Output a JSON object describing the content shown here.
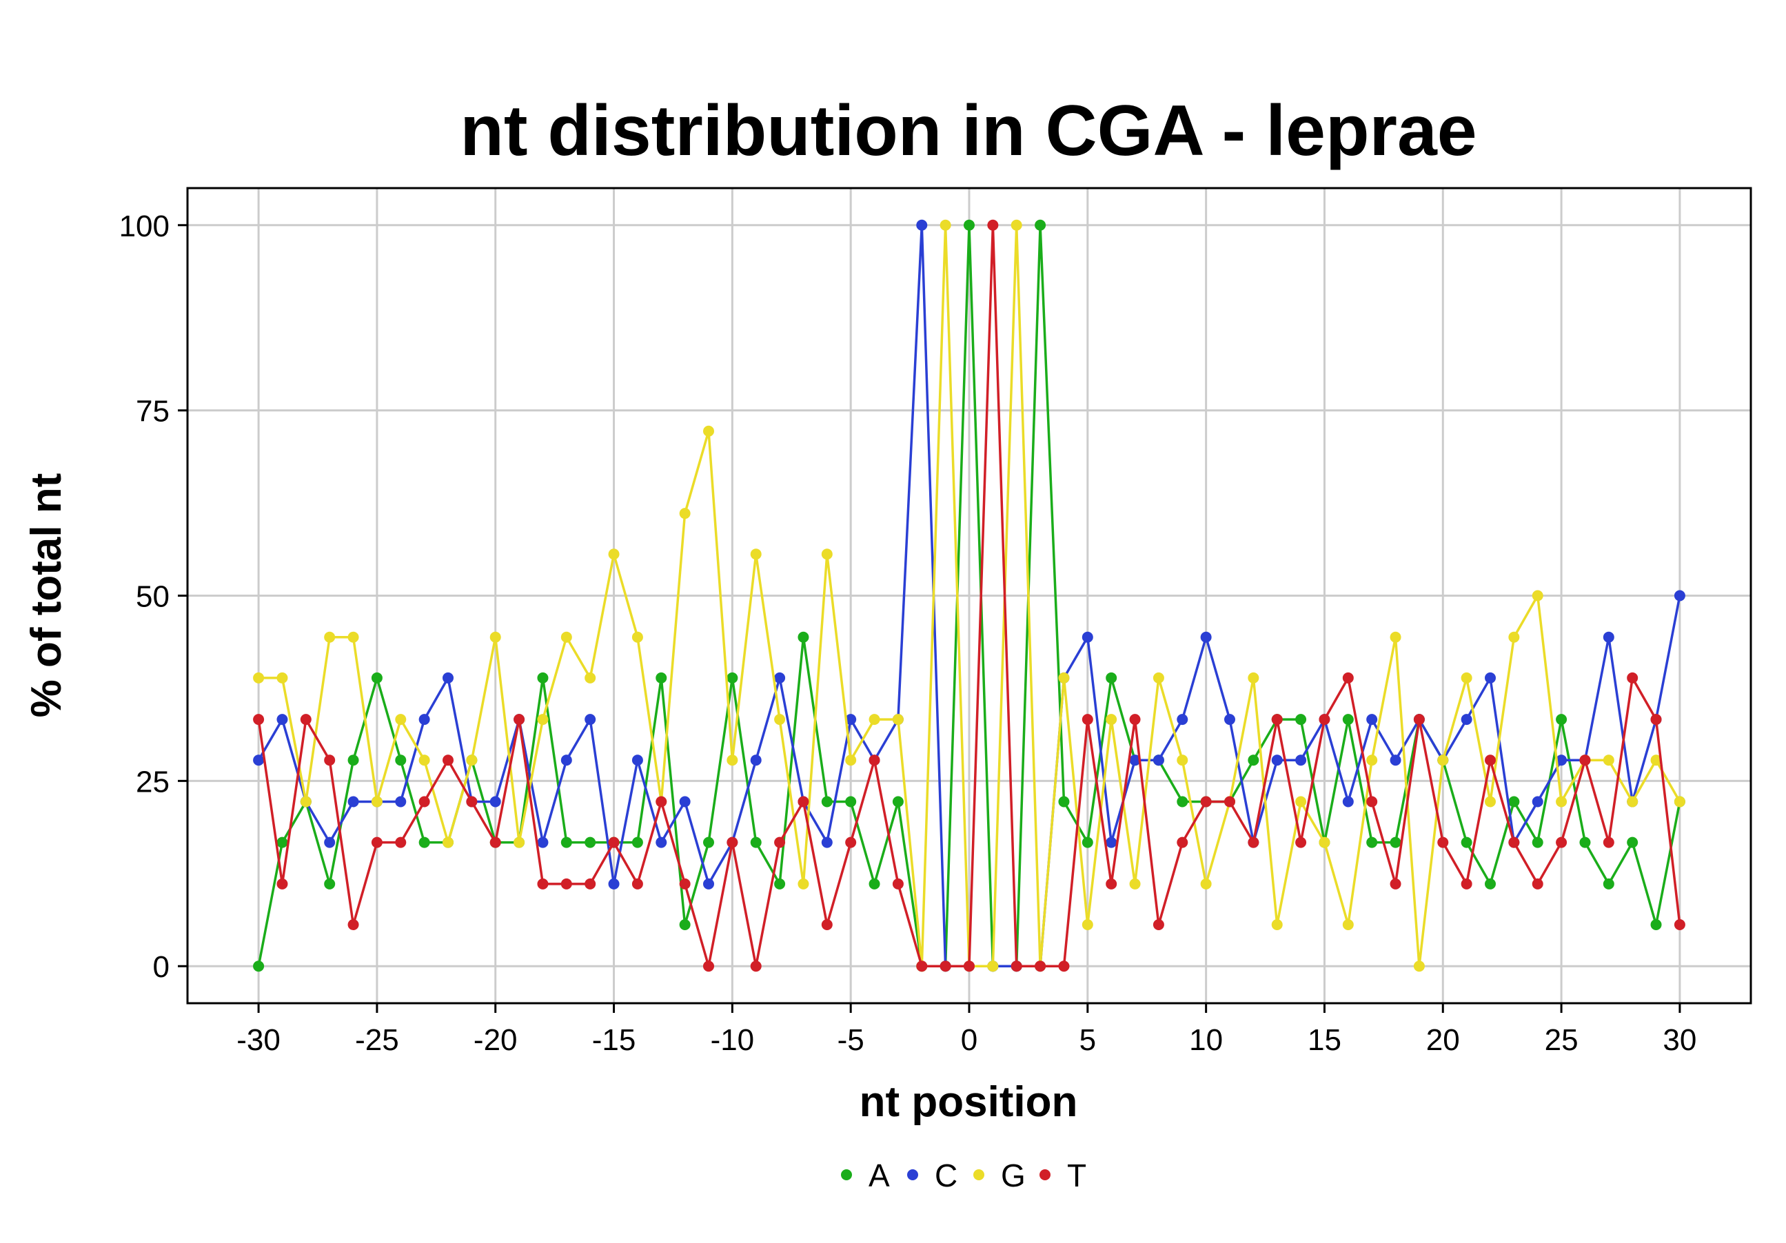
{
  "chart_data": {
    "type": "line",
    "title": "nt distribution in CGA - leprae",
    "xlabel": "nt position",
    "ylabel": "% of total nt",
    "xlim": [
      -33,
      33
    ],
    "ylim": [
      -5,
      105
    ],
    "x_ticks": [
      -30,
      -25,
      -20,
      -15,
      -10,
      -5,
      0,
      5,
      10,
      15,
      20,
      25,
      30
    ],
    "x_tick_labels": [
      "-30",
      "-25",
      "-20",
      "-15",
      "-10",
      "-5",
      "0",
      "5",
      "10",
      "15",
      "20",
      "25",
      "30"
    ],
    "y_ticks": [
      0,
      25,
      50,
      75,
      100
    ],
    "y_tick_labels": [
      "0",
      "25",
      "50",
      "75",
      "100"
    ],
    "grid": true,
    "legend_position": "bottom",
    "x": [
      -30,
      -29,
      -28,
      -27,
      -26,
      -25,
      -24,
      -23,
      -22,
      -21,
      -20,
      -19,
      -18,
      -17,
      -16,
      -15,
      -14,
      -13,
      -12,
      -11,
      -10,
      -9,
      -8,
      -7,
      -6,
      -5,
      -4,
      -3,
      -2,
      -1,
      0,
      1,
      2,
      3,
      4,
      5,
      6,
      7,
      8,
      9,
      10,
      11,
      12,
      13,
      14,
      15,
      16,
      17,
      18,
      19,
      20,
      21,
      22,
      23,
      24,
      25,
      26,
      27,
      28,
      29,
      30
    ],
    "series": [
      {
        "name": "A",
        "color": "#1aad1a",
        "values": [
          0,
          16.7,
          22.2,
          11.1,
          27.8,
          38.9,
          27.8,
          16.7,
          16.7,
          27.8,
          16.7,
          16.7,
          38.9,
          16.7,
          16.7,
          16.7,
          16.7,
          38.9,
          5.6,
          16.7,
          38.9,
          16.7,
          11.1,
          44.4,
          22.2,
          22.2,
          11.1,
          22.2,
          0,
          0,
          100,
          0,
          0,
          100,
          22.2,
          16.7,
          38.9,
          27.8,
          27.8,
          22.2,
          22.2,
          22.2,
          27.8,
          33.3,
          33.3,
          16.7,
          33.3,
          16.7,
          16.7,
          33.3,
          27.8,
          16.7,
          11.1,
          22.2,
          16.7,
          33.3,
          16.7,
          11.1,
          16.7,
          5.6,
          22.2
        ]
      },
      {
        "name": "C",
        "color": "#2a3fd4",
        "values": [
          27.8,
          33.3,
          22.2,
          16.7,
          22.2,
          22.2,
          22.2,
          33.3,
          38.9,
          22.2,
          22.2,
          33.3,
          16.7,
          27.8,
          33.3,
          11.1,
          27.8,
          16.7,
          22.2,
          11.1,
          16.7,
          27.8,
          38.9,
          22.2,
          16.7,
          33.3,
          27.8,
          33.3,
          100,
          0,
          0,
          0,
          0,
          0,
          38.9,
          44.4,
          16.7,
          27.8,
          27.8,
          33.3,
          44.4,
          33.3,
          16.7,
          27.8,
          27.8,
          33.3,
          22.2,
          33.3,
          27.8,
          33.3,
          27.8,
          33.3,
          38.9,
          16.7,
          22.2,
          27.8,
          27.8,
          44.4,
          22.2,
          33.3,
          50
        ]
      },
      {
        "name": "G",
        "color": "#ebdc28",
        "values": [
          38.9,
          38.9,
          22.2,
          44.4,
          44.4,
          22.2,
          33.3,
          27.8,
          16.7,
          27.8,
          44.4,
          16.7,
          33.3,
          44.4,
          38.9,
          55.6,
          44.4,
          22.2,
          61.1,
          72.2,
          27.8,
          55.6,
          33.3,
          11.1,
          55.6,
          27.8,
          33.3,
          33.3,
          0,
          100,
          0,
          0,
          100,
          0,
          38.9,
          5.6,
          33.3,
          11.1,
          38.9,
          27.8,
          11.1,
          22.2,
          38.9,
          5.6,
          22.2,
          16.7,
          5.6,
          27.8,
          44.4,
          0,
          27.8,
          38.9,
          22.2,
          44.4,
          50,
          22.2,
          27.8,
          27.8,
          22.2,
          27.8,
          22.2
        ]
      },
      {
        "name": "T",
        "color": "#d11f27",
        "values": [
          33.3,
          11.1,
          33.3,
          27.8,
          5.6,
          16.7,
          16.7,
          22.2,
          27.8,
          22.2,
          16.7,
          33.3,
          11.1,
          11.1,
          11.1,
          16.7,
          11.1,
          22.2,
          11.1,
          0,
          16.7,
          0,
          16.7,
          22.2,
          5.6,
          16.7,
          27.8,
          11.1,
          0,
          0,
          0,
          100,
          0,
          0,
          0,
          33.3,
          11.1,
          33.3,
          5.6,
          16.7,
          22.2,
          22.2,
          16.7,
          33.3,
          16.7,
          33.3,
          38.9,
          22.2,
          11.1,
          33.3,
          16.7,
          11.1,
          27.8,
          16.7,
          11.1,
          16.7,
          27.8,
          16.7,
          38.9,
          33.3,
          5.6
        ]
      }
    ]
  }
}
